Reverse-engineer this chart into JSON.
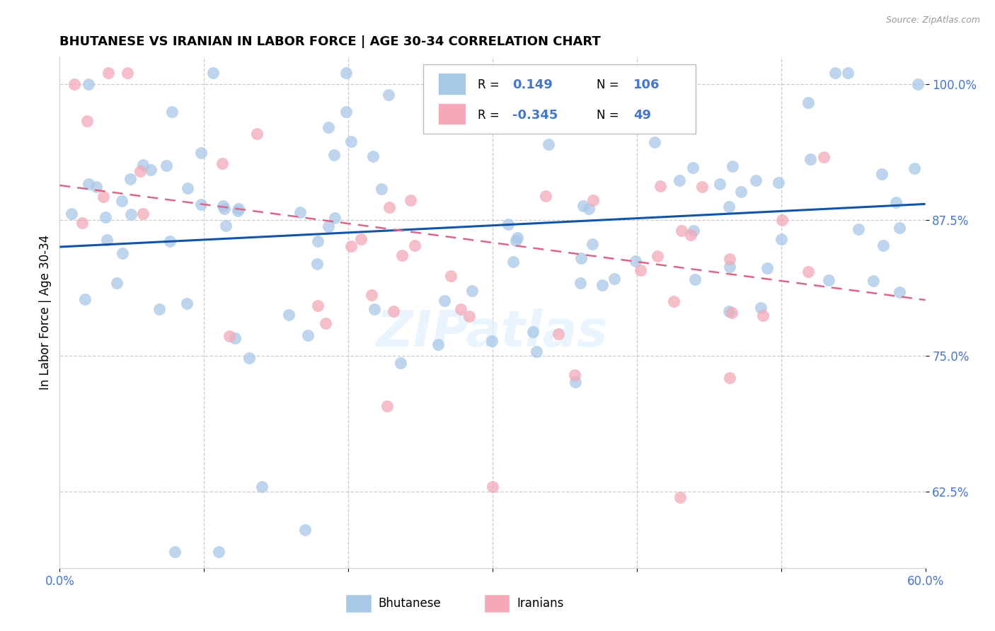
{
  "title": "BHUTANESE VS IRANIAN IN LABOR FORCE | AGE 30-34 CORRELATION CHART",
  "source_text": "Source: ZipAtlas.com",
  "ylabel": "In Labor Force | Age 30-34",
  "xlim": [
    0.0,
    0.6
  ],
  "ylim": [
    0.555,
    1.025
  ],
  "xticks": [
    0.0,
    0.1,
    0.2,
    0.3,
    0.4,
    0.5,
    0.6
  ],
  "xticklabels": [
    "0.0%",
    "",
    "",
    "",
    "",
    "",
    "60.0%"
  ],
  "yticks": [
    0.625,
    0.75,
    0.875,
    1.0
  ],
  "yticklabels": [
    "62.5%",
    "75.0%",
    "87.5%",
    "100.0%"
  ],
  "blue_color": "#A8C8E8",
  "pink_color": "#F4A8B8",
  "blue_line_color": "#1155AA",
  "pink_line_color": "#DD6688",
  "R_blue": 0.149,
  "N_blue": 106,
  "R_pink": -0.345,
  "N_pink": 49,
  "watermark": "ZIPatlas",
  "tick_color": "#4477CC",
  "grid_color": "#CCCCCC"
}
